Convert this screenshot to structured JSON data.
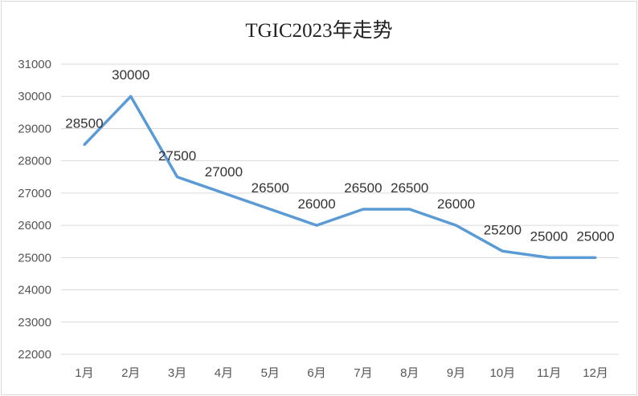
{
  "chart_data": {
    "type": "line",
    "title": "TGIC2023年走势",
    "categories": [
      "1月",
      "2月",
      "3月",
      "4月",
      "5月",
      "6月",
      "7月",
      "8月",
      "9月",
      "10月",
      "11月",
      "12月"
    ],
    "series": [
      {
        "values": [
          28500,
          30000,
          27500,
          27000,
          26500,
          26000,
          26500,
          26500,
          26000,
          25200,
          25000,
          25000
        ],
        "color": "#5b9bd5"
      }
    ],
    "data_labels": [
      "28500",
      "30000",
      "27500",
      "27000",
      "26500",
      "26000",
      "26500",
      "26500",
      "26000",
      "25200",
      "25000",
      "25000"
    ],
    "ylim": [
      22000,
      31000
    ],
    "yticks": [
      "22000",
      "23000",
      "24000",
      "25000",
      "26000",
      "27000",
      "28000",
      "29000",
      "30000",
      "31000"
    ],
    "grid": true,
    "legend": "none",
    "xlabel": "",
    "ylabel": ""
  }
}
